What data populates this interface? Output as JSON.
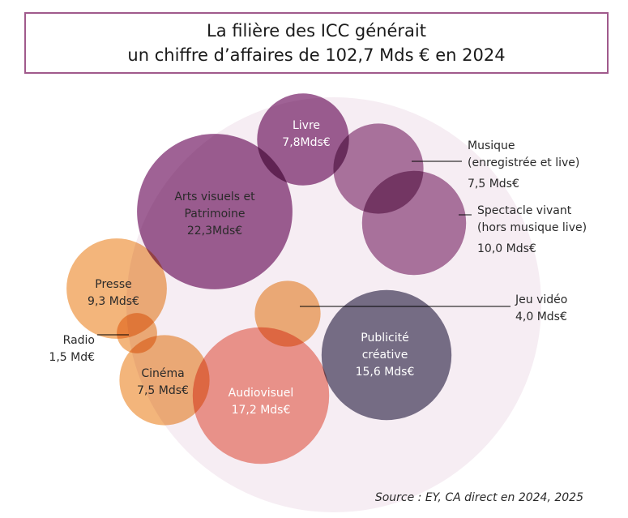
{
  "title": {
    "line1": "La filière des ICC générait",
    "line2": "un chiffre d’affaires de 102,7 Mds € en 2024"
  },
  "source": "Source : EY, CA direct en 2024, 2025",
  "colors": {
    "background_circle": "#f6edf3",
    "purple": "#8a3f7e",
    "purple_light": "#9c5b8f",
    "orange": "#f0a55e",
    "salmon": "#ee8678",
    "slate": "#5b5672"
  },
  "chart_data": {
    "type": "bubble",
    "unit": "Mds €",
    "total": 102.7,
    "year": 2024,
    "series": [
      {
        "name": "Arts visuels et Patrimoine",
        "value": 22.3,
        "label_lines": [
          "Arts visuels et",
          "Patrimoine",
          "22,3Mds€"
        ],
        "color": "#8a3f7e",
        "label_color": "#2a2a2a"
      },
      {
        "name": "Livre",
        "value": 7.8,
        "label_lines": [
          "Livre",
          "7,8Mds€"
        ],
        "color": "#8a3f7e",
        "label_color": "#ffffff"
      },
      {
        "name": "Musique",
        "value": 7.5,
        "label_lines": [
          "Musique",
          "(enregistrée et live)",
          "7,5 Mds€"
        ],
        "color": "#9c5b8f",
        "label_color": "#2a2a2a"
      },
      {
        "name": "Spectacle vivant",
        "value": 10.0,
        "label_lines": [
          "Spectacle vivant",
          "(hors musique live)",
          "10,0 Mds€"
        ],
        "color": "#9c5b8f",
        "label_color": "#2a2a2a"
      },
      {
        "name": "Presse",
        "value": 9.3,
        "label_lines": [
          "Presse",
          "9,3 Mds€"
        ],
        "color": "#f0a55e",
        "label_color": "#2a2a2a"
      },
      {
        "name": "Radio",
        "value": 1.5,
        "label_lines": [
          "Radio",
          "1,5 Md€"
        ],
        "color": "#f0a55e",
        "label_color": "#2a2a2a"
      },
      {
        "name": "Jeu vidéo",
        "value": 4.0,
        "label_lines": [
          "Jeu vidéo",
          "4,0 Mds€"
        ],
        "color": "#f0a55e",
        "label_color": "#2a2a2a"
      },
      {
        "name": "Cinéma",
        "value": 7.5,
        "label_lines": [
          "Cinéma",
          "7,5 Mds€"
        ],
        "color": "#f0a55e",
        "label_color": "#2a2a2a"
      },
      {
        "name": "Audiovisuel",
        "value": 17.2,
        "label_lines": [
          "Audiovisuel",
          "17,2 Mds€"
        ],
        "color": "#ee8678",
        "label_color": "#ffffff"
      },
      {
        "name": "Publicité créative",
        "value": 15.6,
        "label_lines": [
          "Publicité",
          "créative",
          "15,6 Mds€"
        ],
        "color": "#5b5672",
        "label_color": "#ffffff"
      }
    ]
  }
}
